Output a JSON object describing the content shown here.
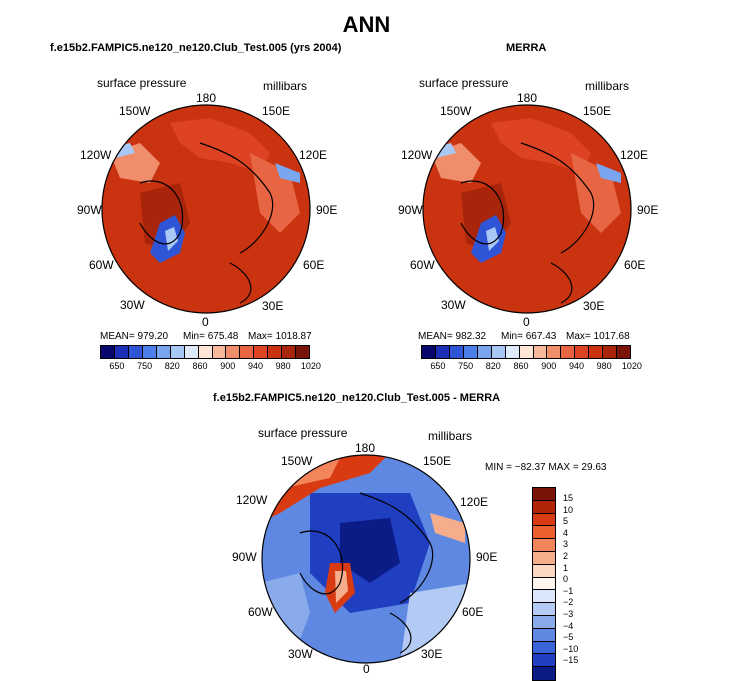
{
  "title": "ANN",
  "panels": [
    {
      "title": "f.e15b2.FAMPIC5.ne120_ne120.Club_Test.005 (yrs 2004)",
      "variable": "surface pressure",
      "units": "millibars",
      "lon_labels": [
        "180",
        "150E",
        "120E",
        "90E",
        "60E",
        "30E",
        "0",
        "30W",
        "60W",
        "90W",
        "120W",
        "150W"
      ],
      "mean_label": "MEAN= 979.20",
      "min_label": "Min= 675.48",
      "max_label": "Max= 1018.87",
      "colorbar_ticks": [
        "650",
        "750",
        "820",
        "860",
        "900",
        "940",
        "980",
        "1020"
      ]
    },
    {
      "title": "MERRA",
      "variable": "surface pressure",
      "units": "millibars",
      "lon_labels": [
        "180",
        "150E",
        "120E",
        "90E",
        "60E",
        "30E",
        "0",
        "30W",
        "60W",
        "90W",
        "120W",
        "150W"
      ],
      "mean_label": "MEAN= 982.32",
      "min_label": "Min= 667.43",
      "max_label": "Max= 1017.68",
      "colorbar_ticks": [
        "650",
        "750",
        "820",
        "860",
        "900",
        "940",
        "980",
        "1020"
      ]
    },
    {
      "title": "f.e15b2.FAMPIC5.ne120_ne120.Club_Test.005 - MERRA",
      "variable": "surface pressure",
      "units": "millibars",
      "lon_labels": [
        "180",
        "150E",
        "120E",
        "90E",
        "60E",
        "30E",
        "0",
        "30W",
        "60W",
        "90W",
        "120W",
        "150W"
      ],
      "minmax_label": "MIN = −82.37  MAX =   29.63",
      "colorbar_ticks": [
        "15",
        "10",
        "5",
        "4",
        "3",
        "2",
        "1",
        "0",
        "−1",
        "−2",
        "−3",
        "−4",
        "−5",
        "−10",
        "−15"
      ]
    }
  ],
  "colors": {
    "abs_scale": [
      "#06066b",
      "#1a2fb5",
      "#2f55d6",
      "#4d7fe8",
      "#7aa6f0",
      "#a9c8f5",
      "#dfeafb",
      "#fde6d8",
      "#f7b89c",
      "#f08e6c",
      "#e86543",
      "#dd4322",
      "#c9330f",
      "#a8240a",
      "#7a1406"
    ],
    "diff_scale": [
      "#7a1406",
      "#b12408",
      "#d83a12",
      "#ec5f2f",
      "#f2855a",
      "#f6ad8b",
      "#fbd7c2",
      "#fff6f0",
      "#dbe7fb",
      "#b3cbf4",
      "#89abec",
      "#5f88e3",
      "#3a64da",
      "#1f3ec0",
      "#0b1c86"
    ]
  }
}
